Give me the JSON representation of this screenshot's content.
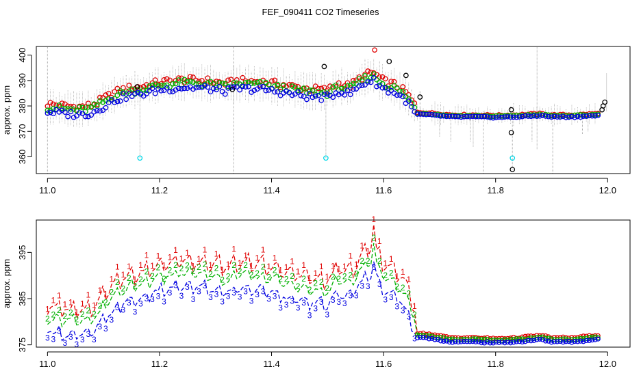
{
  "title": "FEF_090411  CO2 Timeseries",
  "colors": {
    "s1": "#e00000",
    "s2": "#00b000",
    "s3": "#0000e0",
    "raw": "#000000",
    "flag": "#00d8e8",
    "spike": "#aaaaaa"
  },
  "chart_data": [
    {
      "type": "scatter",
      "name": "top-panel",
      "ylabel": "approx. ppm",
      "xlim": [
        10.98,
        12.04
      ],
      "ylim": [
        353.4,
        403.4
      ],
      "xticks": [
        11.0,
        11.2,
        11.4,
        11.6,
        11.8,
        12.0
      ],
      "xtick_labels": [
        "11.0",
        "11.2",
        "11.4",
        "11.6",
        "11.8",
        "12.0"
      ],
      "yticks": [
        360,
        370,
        380,
        390,
        400
      ],
      "ytick_labels": [
        "360",
        "370",
        "380",
        "390",
        "400"
      ],
      "baseline_knots": {
        "x": [
          11.0,
          11.02,
          11.04,
          11.06,
          11.08,
          11.1,
          11.12,
          11.14,
          11.16,
          11.18,
          11.2,
          11.24,
          11.28,
          11.32,
          11.34,
          11.38,
          11.42,
          11.46,
          11.5,
          11.52,
          11.54,
          11.56,
          11.58,
          11.6,
          11.62,
          11.64,
          11.66,
          11.68,
          11.72,
          11.76,
          11.8,
          11.84,
          11.88,
          11.9,
          11.94,
          11.98
        ],
        "y": [
          379,
          378.5,
          378,
          377.8,
          378.5,
          381,
          383.5,
          385,
          385.5,
          386.5,
          387.5,
          388.5,
          388.2,
          387,
          388,
          387.8,
          386.5,
          385,
          384.5,
          387,
          386,
          389.5,
          391.5,
          388,
          386.5,
          383.5,
          377,
          376.8,
          376,
          376,
          375.8,
          376,
          376.5,
          376,
          376,
          376.5
        ]
      },
      "series": [
        {
          "name": "1",
          "offset": 1.8,
          "color_key": "s1"
        },
        {
          "name": "2",
          "offset": 0.6,
          "color_key": "s2"
        },
        {
          "name": "3",
          "offset": -1.2,
          "color_key": "s3"
        }
      ],
      "outliers": [
        {
          "x": 11.165,
          "y": 359.5,
          "color_key": "flag"
        },
        {
          "x": 11.497,
          "y": 359.5,
          "color_key": "flag"
        },
        {
          "x": 11.83,
          "y": 359.5,
          "color_key": "flag"
        },
        {
          "x": 11.828,
          "y": 378.5,
          "color_key": "raw"
        },
        {
          "x": 11.828,
          "y": 369.5,
          "color_key": "raw"
        },
        {
          "x": 11.83,
          "y": 355,
          "color_key": "raw"
        },
        {
          "x": 11.995,
          "y": 381.5,
          "color_key": "raw"
        },
        {
          "x": 11.992,
          "y": 380,
          "color_key": "raw"
        },
        {
          "x": 11.99,
          "y": 378.5,
          "color_key": "raw"
        },
        {
          "x": 11.584,
          "y": 402,
          "color_key": "s1"
        },
        {
          "x": 11.494,
          "y": 395.5,
          "color_key": "raw"
        },
        {
          "x": 11.61,
          "y": 397.5,
          "color_key": "raw"
        },
        {
          "x": 11.64,
          "y": 392,
          "color_key": "raw"
        },
        {
          "x": 11.665,
          "y": 383.5,
          "color_key": "raw"
        },
        {
          "x": 11.33,
          "y": 386.5,
          "color_key": "raw"
        },
        {
          "x": 11.16,
          "y": 387.5,
          "color_key": "raw"
        }
      ],
      "spikes": [
        {
          "x": 11.0,
          "y0": 353.4,
          "y1": 403.4
        },
        {
          "x": 11.332,
          "y0": 353.4,
          "y1": 403.4
        },
        {
          "x": 11.497,
          "y0": 359.5,
          "y1": 386
        },
        {
          "x": 11.165,
          "y0": 359.5,
          "y1": 387
        },
        {
          "x": 11.665,
          "y0": 353.4,
          "y1": 386
        },
        {
          "x": 11.778,
          "y0": 353.4,
          "y1": 378
        },
        {
          "x": 11.83,
          "y0": 355,
          "y1": 378
        },
        {
          "x": 11.874,
          "y0": 363,
          "y1": 403.4
        },
        {
          "x": 11.902,
          "y0": 353.4,
          "y1": 378
        },
        {
          "x": 11.998,
          "y0": 378,
          "y1": 393
        },
        {
          "x": 11.7,
          "y0": 368,
          "y1": 378
        },
        {
          "x": 11.72,
          "y0": 366,
          "y1": 377
        },
        {
          "x": 11.755,
          "y0": 366,
          "y1": 377
        },
        {
          "x": 11.76,
          "y0": 364,
          "y1": 377
        },
        {
          "x": 11.865,
          "y0": 366,
          "y1": 377
        },
        {
          "x": 11.955,
          "y0": 369,
          "y1": 377
        },
        {
          "x": 11.965,
          "y0": 370,
          "y1": 377
        }
      ]
    },
    {
      "type": "line",
      "name": "bottom-panel",
      "ylabel": "approx. ppm",
      "xlim": [
        10.98,
        12.04
      ],
      "ylim": [
        374.5,
        402
      ],
      "xticks": [
        11.0,
        11.2,
        11.4,
        11.6,
        11.8,
        12.0
      ],
      "xtick_labels": [
        "11.0",
        "11.2",
        "11.4",
        "11.6",
        "11.8",
        "12.0"
      ],
      "yticks": [
        375,
        385,
        395
      ],
      "ytick_labels": [
        "375",
        "385",
        "395"
      ],
      "gaps": [
        [
          11.5,
          11.505
        ],
        [
          11.34,
          11.345
        ],
        [
          11.83,
          11.835
        ]
      ],
      "baseline_knots": {
        "x": [
          11.0,
          11.02,
          11.04,
          11.06,
          11.08,
          11.1,
          11.12,
          11.14,
          11.16,
          11.18,
          11.2,
          11.24,
          11.28,
          11.32,
          11.34,
          11.38,
          11.42,
          11.46,
          11.5,
          11.52,
          11.54,
          11.56,
          11.58,
          11.6,
          11.62,
          11.64,
          11.66,
          11.68,
          11.72,
          11.76,
          11.8,
          11.84,
          11.88,
          11.9,
          11.94,
          11.98
        ],
        "y": [
          379,
          378.5,
          378,
          377.8,
          378.5,
          381,
          383.5,
          385,
          385.5,
          386.5,
          387.5,
          388.5,
          388.2,
          387,
          388,
          387.8,
          386.5,
          385,
          384.5,
          387,
          386,
          389.5,
          391.5,
          388,
          386.5,
          383.5,
          377,
          376.8,
          376,
          376,
          375.8,
          376,
          376.5,
          376,
          376,
          376.5
        ]
      },
      "series": [
        {
          "name": "1",
          "offset": 1.8,
          "color_key": "s1",
          "peak": {
            "x": 11.584,
            "y": 401
          }
        },
        {
          "name": "2",
          "offset": 0.6,
          "color_key": "s2",
          "peak": {
            "x": 11.584,
            "y": 397
          }
        },
        {
          "name": "3",
          "offset": -1.2,
          "color_key": "s3",
          "peak": {
            "x": 11.584,
            "y": 393
          }
        }
      ]
    }
  ]
}
